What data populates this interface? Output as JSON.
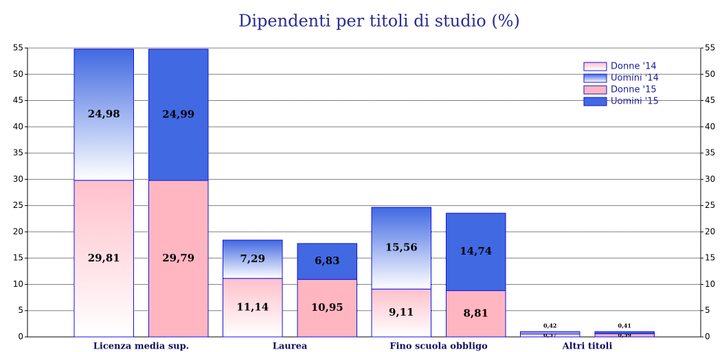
{
  "chart_data": {
    "type": "stacked-bar",
    "title": "Dipendenti per titoli di studio (%)",
    "categories": [
      "Licenza media sup.",
      "Laurea",
      "Fino scuola obbligo",
      "Altri titoli"
    ],
    "series": [
      {
        "name": "Donne '14",
        "color": "#ffc0cb",
        "gradient": true,
        "values": [
          29.81,
          11.14,
          9.11,
          0.57
        ],
        "value_labels": [
          "29,81",
          "11,14",
          "9,11",
          "0,57"
        ]
      },
      {
        "name": "Uomini '14",
        "color": "#4169e1",
        "gradient": true,
        "values": [
          24.98,
          7.29,
          15.56,
          0.42
        ],
        "value_labels": [
          "24,98",
          "7,29",
          "15,56",
          "0,42"
        ]
      },
      {
        "name": "Donne '15",
        "color": "#ffb6c1",
        "gradient": false,
        "values": [
          29.79,
          10.95,
          8.81,
          0.59
        ],
        "value_labels": [
          "29,79",
          "10,95",
          "8,81",
          "0,59"
        ]
      },
      {
        "name": "Uomini '15",
        "color": "#4169e1",
        "gradient": false,
        "values": [
          24.99,
          6.83,
          14.74,
          0.41
        ],
        "value_labels": [
          "24,99",
          "6,83",
          "14,74",
          "0,41"
        ]
      }
    ],
    "ylim": [
      0,
      55
    ],
    "yticks": [
      0,
      5,
      10,
      15,
      20,
      25,
      30,
      35,
      40,
      45,
      50,
      55
    ],
    "y2lim": [
      0,
      55
    ],
    "y2ticks": [
      0,
      5,
      10,
      15,
      20,
      25,
      30,
      35,
      40,
      45,
      50,
      55
    ],
    "grid": true,
    "legend": "top-right"
  }
}
